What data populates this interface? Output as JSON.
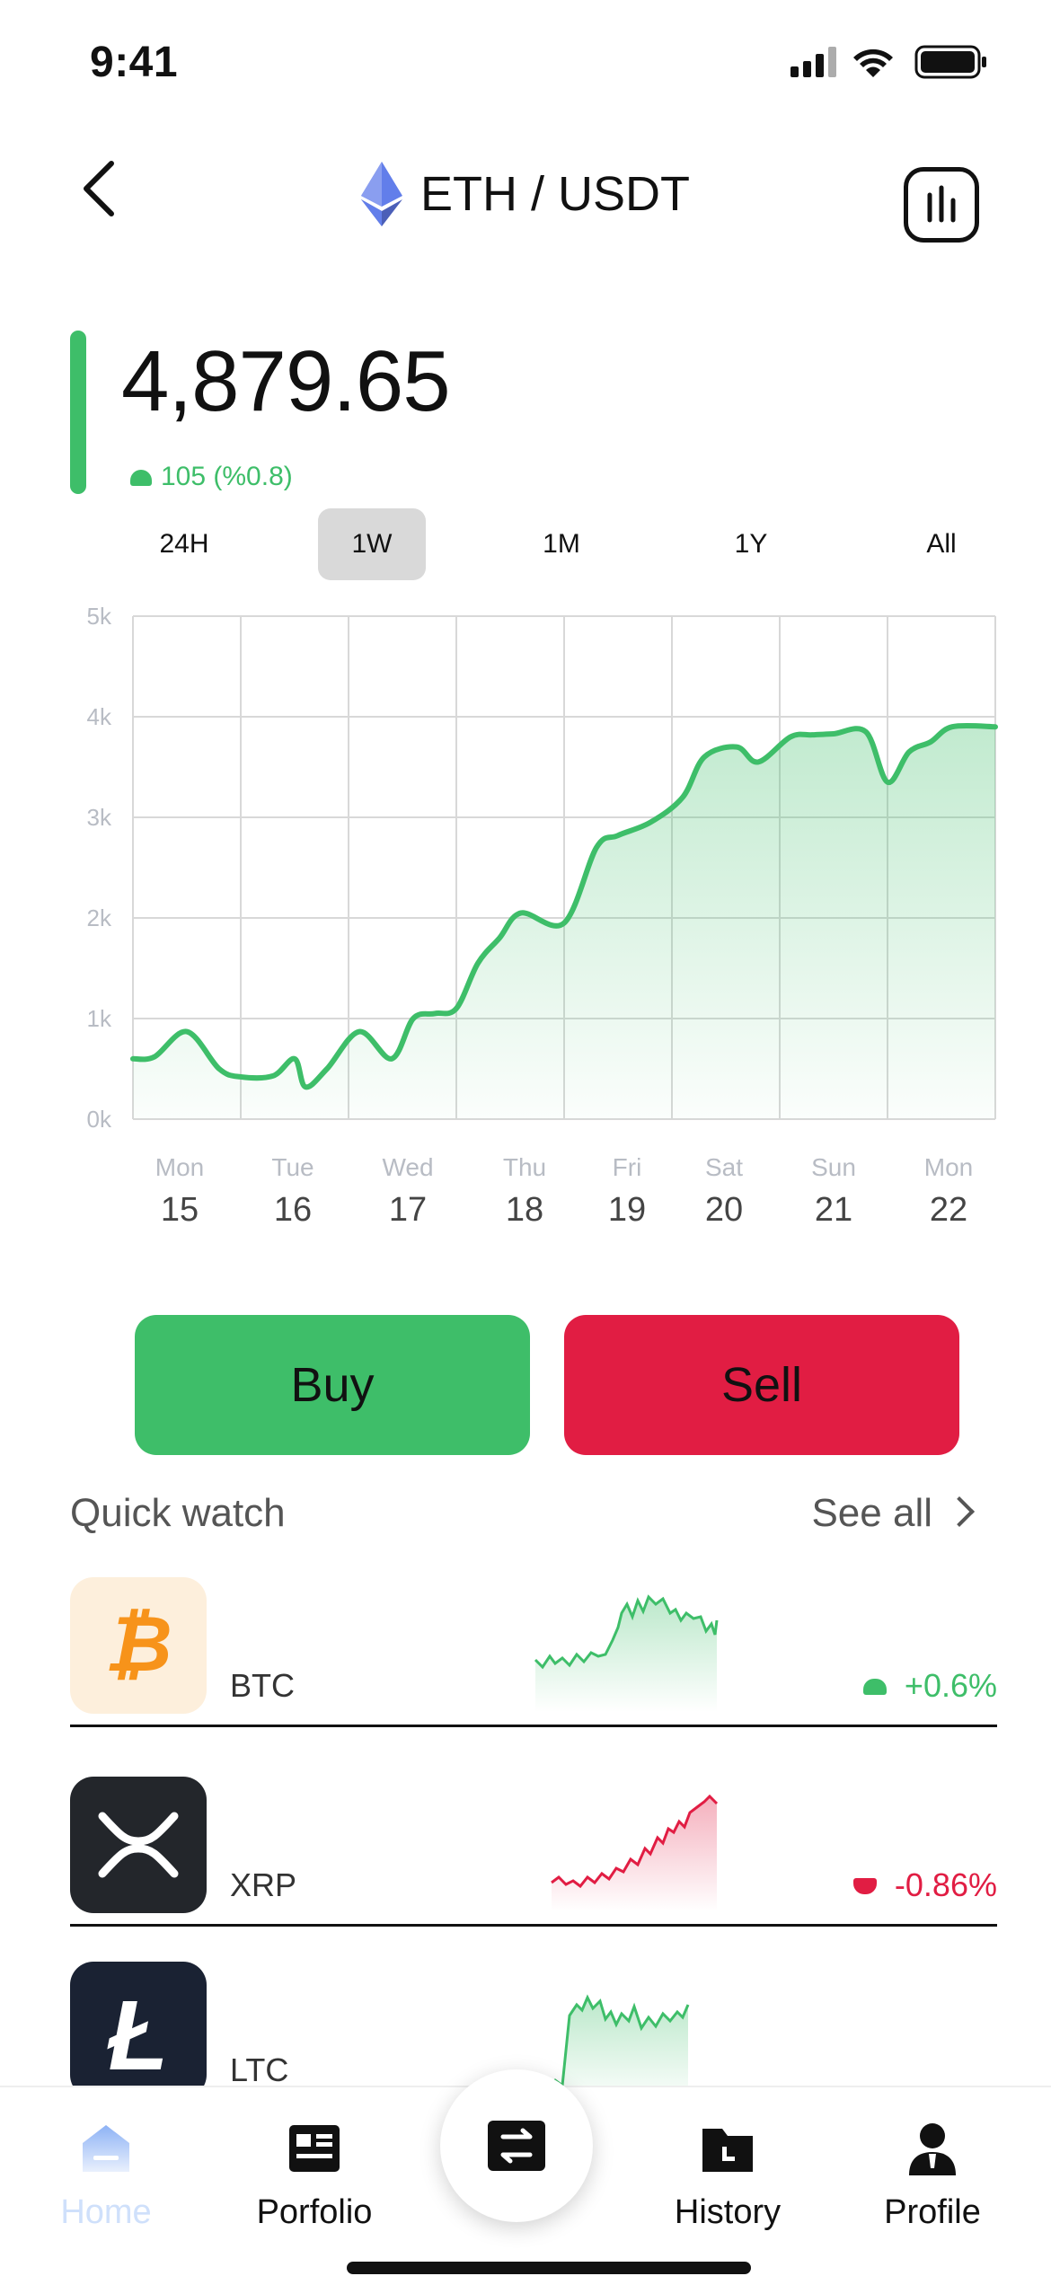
{
  "status": {
    "time": "9:41"
  },
  "header": {
    "pair": "ETH / USDT"
  },
  "price": {
    "value": "4,879.65",
    "change": "105 (%0.8)"
  },
  "ranges": [
    {
      "label": "24H",
      "active": false
    },
    {
      "label": "1W",
      "active": true
    },
    {
      "label": "1M",
      "active": false
    },
    {
      "label": "1Y",
      "active": false
    },
    {
      "label": "All",
      "active": false
    }
  ],
  "chart_data": {
    "type": "area",
    "y_ticks": [
      "0k",
      "1k",
      "2k",
      "3k",
      "4k",
      "5k"
    ],
    "ylim": [
      0,
      5000
    ],
    "grid": true,
    "color": "#3EBE69",
    "x_labels": [
      {
        "day": "Mon",
        "date": "15"
      },
      {
        "day": "Tue",
        "date": "16"
      },
      {
        "day": "Wed",
        "date": "17"
      },
      {
        "day": "Thu",
        "date": "18"
      },
      {
        "day": "Fri",
        "date": "19"
      },
      {
        "day": "Sat",
        "date": "20"
      },
      {
        "day": "Sun",
        "date": "21"
      },
      {
        "day": "Mon",
        "date": "22"
      }
    ],
    "x": [
      0,
      0.2,
      0.5,
      0.8,
      1.0,
      1.3,
      1.5,
      1.6,
      1.8,
      2.1,
      2.4,
      2.6,
      2.8,
      3.0,
      3.2,
      3.4,
      3.6,
      4.0,
      4.3,
      4.5,
      4.8,
      5.1,
      5.3,
      5.6,
      5.8,
      6.1,
      6.3,
      6.5,
      6.8,
      7.0,
      7.2,
      7.4,
      7.6,
      8.0
    ],
    "values": [
      600,
      620,
      870,
      500,
      420,
      430,
      600,
      320,
      500,
      870,
      600,
      1000,
      1050,
      1100,
      1550,
      1800,
      2050,
      1950,
      2700,
      2820,
      2950,
      3200,
      3600,
      3700,
      3550,
      3800,
      3820,
      3830,
      3850,
      3350,
      3650,
      3750,
      3900,
      3900
    ]
  },
  "actions": {
    "buy": "Buy",
    "sell": "Sell"
  },
  "quick_watch": {
    "title": "Quick watch",
    "see_all": "See all",
    "coins": [
      {
        "symbol": "BTC",
        "change": "+0.6%",
        "trend": "up"
      },
      {
        "symbol": "XRP",
        "change": "-0.86%",
        "trend": "down"
      },
      {
        "symbol": "LTC",
        "change": "",
        "trend": "up"
      }
    ]
  },
  "nav": [
    {
      "label": "Home",
      "active": true
    },
    {
      "label": "Porfolio",
      "active": false
    },
    {
      "label": "History",
      "active": false
    },
    {
      "label": "Profile",
      "active": false
    }
  ]
}
